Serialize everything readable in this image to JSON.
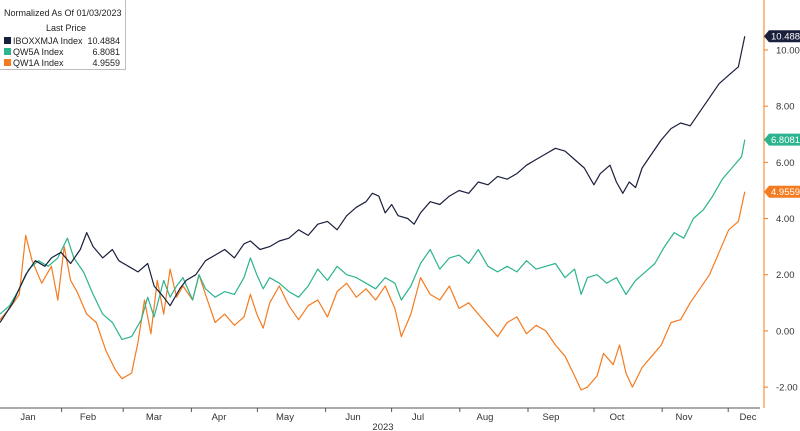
{
  "chart_data": {
    "type": "line",
    "legend_title": "Normalized As Of 01/03/2023",
    "legend_subtitle": "Last Price",
    "xlabel": "2023",
    "x_ticks": [
      "Jan",
      "Feb",
      "Mar",
      "Apr",
      "May",
      "Jun",
      "Jul",
      "Aug",
      "Sep",
      "Oct",
      "Nov",
      "Dec"
    ],
    "ylim": [
      -2.6,
      11.6
    ],
    "y_ticks": [
      "10.00",
      "8.00",
      "6.00",
      "4.00",
      "2.00",
      "0.00",
      "-2.00"
    ],
    "grid": false,
    "legend_position": "top-left",
    "series": [
      {
        "name": "IBOXXMJA Index",
        "value_label": "10.4884",
        "last": 10.4884,
        "color": "#1a1f3c",
        "points": [
          [
            0,
            0.3
          ],
          [
            4,
            1.0
          ],
          [
            8,
            2.0
          ],
          [
            11,
            2.5
          ],
          [
            14,
            2.3
          ],
          [
            16,
            2.6
          ],
          [
            19,
            2.8
          ],
          [
            22,
            2.4
          ],
          [
            25,
            2.9
          ],
          [
            27,
            3.5
          ],
          [
            29,
            3.0
          ],
          [
            32,
            2.6
          ],
          [
            35,
            2.9
          ],
          [
            37,
            2.5
          ],
          [
            40,
            2.3
          ],
          [
            43,
            2.1
          ],
          [
            46,
            2.4
          ],
          [
            48,
            1.6
          ],
          [
            51,
            1.2
          ],
          [
            53,
            0.9
          ],
          [
            56,
            1.5
          ],
          [
            58,
            1.8
          ],
          [
            61,
            2.0
          ],
          [
            64,
            2.5
          ],
          [
            67,
            2.7
          ],
          [
            70,
            2.9
          ],
          [
            73,
            2.6
          ],
          [
            76,
            3.1
          ],
          [
            78,
            3.2
          ],
          [
            81,
            2.9
          ],
          [
            84,
            3.0
          ],
          [
            87,
            3.2
          ],
          [
            90,
            3.3
          ],
          [
            93,
            3.6
          ],
          [
            96,
            3.4
          ],
          [
            99,
            3.8
          ],
          [
            102,
            3.9
          ],
          [
            105,
            3.6
          ],
          [
            108,
            4.1
          ],
          [
            111,
            4.4
          ],
          [
            114,
            4.6
          ],
          [
            116,
            4.9
          ],
          [
            118,
            4.8
          ],
          [
            120,
            4.2
          ],
          [
            122,
            4.5
          ],
          [
            124,
            4.1
          ],
          [
            127,
            4.0
          ],
          [
            129,
            3.8
          ],
          [
            131,
            4.2
          ],
          [
            134,
            4.6
          ],
          [
            137,
            4.5
          ],
          [
            140,
            4.8
          ],
          [
            143,
            5.0
          ],
          [
            146,
            4.9
          ],
          [
            149,
            5.3
          ],
          [
            152,
            5.2
          ],
          [
            155,
            5.5
          ],
          [
            158,
            5.4
          ],
          [
            161,
            5.6
          ],
          [
            164,
            5.9
          ],
          [
            167,
            6.1
          ],
          [
            170,
            6.3
          ],
          [
            173,
            6.5
          ],
          [
            176,
            6.4
          ],
          [
            179,
            6.1
          ],
          [
            182,
            5.8
          ],
          [
            185,
            5.2
          ],
          [
            187,
            5.6
          ],
          [
            190,
            5.9
          ],
          [
            192,
            5.3
          ],
          [
            194,
            4.9
          ],
          [
            196,
            5.3
          ],
          [
            198,
            5.1
          ],
          [
            200,
            5.8
          ],
          [
            203,
            6.3
          ],
          [
            206,
            6.8
          ],
          [
            209,
            7.2
          ],
          [
            212,
            7.4
          ],
          [
            215,
            7.3
          ],
          [
            218,
            7.8
          ],
          [
            221,
            8.3
          ],
          [
            224,
            8.8
          ],
          [
            227,
            9.1
          ],
          [
            230,
            9.4
          ],
          [
            232,
            10.4884
          ]
        ]
      },
      {
        "name": "QW5A Index",
        "value_label": "6.8081",
        "last": 6.8081,
        "color": "#2cb38f",
        "points": [
          [
            0,
            0.6
          ],
          [
            3,
            0.9
          ],
          [
            6,
            1.5
          ],
          [
            9,
            2.2
          ],
          [
            12,
            2.5
          ],
          [
            15,
            2.3
          ],
          [
            18,
            2.6
          ],
          [
            21,
            3.3
          ],
          [
            23,
            2.6
          ],
          [
            26,
            2.1
          ],
          [
            29,
            1.3
          ],
          [
            32,
            0.6
          ],
          [
            35,
            0.3
          ],
          [
            38,
            -0.3
          ],
          [
            41,
            -0.2
          ],
          [
            44,
            0.4
          ],
          [
            46,
            1.2
          ],
          [
            48,
            0.5
          ],
          [
            51,
            1.8
          ],
          [
            53,
            1.2
          ],
          [
            55,
            1.6
          ],
          [
            57,
            1.9
          ],
          [
            60,
            1.1
          ],
          [
            62,
            2.0
          ],
          [
            64,
            1.5
          ],
          [
            67,
            1.2
          ],
          [
            70,
            1.4
          ],
          [
            73,
            1.3
          ],
          [
            76,
            1.9
          ],
          [
            78,
            2.6
          ],
          [
            80,
            2.0
          ],
          [
            82,
            1.5
          ],
          [
            84,
            1.9
          ],
          [
            87,
            1.7
          ],
          [
            90,
            1.4
          ],
          [
            93,
            1.2
          ],
          [
            96,
            1.6
          ],
          [
            99,
            2.2
          ],
          [
            102,
            1.8
          ],
          [
            105,
            2.3
          ],
          [
            108,
            2.0
          ],
          [
            111,
            1.9
          ],
          [
            114,
            1.7
          ],
          [
            117,
            1.5
          ],
          [
            120,
            1.9
          ],
          [
            123,
            1.7
          ],
          [
            125,
            1.1
          ],
          [
            128,
            1.6
          ],
          [
            131,
            2.4
          ],
          [
            134,
            2.9
          ],
          [
            137,
            2.2
          ],
          [
            140,
            2.6
          ],
          [
            143,
            2.7
          ],
          [
            146,
            2.4
          ],
          [
            149,
            2.9
          ],
          [
            152,
            2.3
          ],
          [
            155,
            2.1
          ],
          [
            158,
            2.3
          ],
          [
            161,
            2.1
          ],
          [
            164,
            2.5
          ],
          [
            167,
            2.2
          ],
          [
            170,
            2.3
          ],
          [
            173,
            2.4
          ],
          [
            176,
            1.9
          ],
          [
            179,
            2.2
          ],
          [
            181,
            1.3
          ],
          [
            183,
            1.9
          ],
          [
            186,
            2.0
          ],
          [
            189,
            1.7
          ],
          [
            192,
            1.9
          ],
          [
            195,
            1.3
          ],
          [
            198,
            1.8
          ],
          [
            201,
            2.1
          ],
          [
            204,
            2.4
          ],
          [
            207,
            3.0
          ],
          [
            210,
            3.5
          ],
          [
            213,
            3.3
          ],
          [
            216,
            4.0
          ],
          [
            219,
            4.3
          ],
          [
            222,
            4.8
          ],
          [
            225,
            5.4
          ],
          [
            228,
            5.8
          ],
          [
            231,
            6.2
          ],
          [
            232,
            6.8081
          ]
        ]
      },
      {
        "name": "QW1A Index",
        "value_label": "4.9559",
        "last": 4.9559,
        "color": "#f47b20",
        "points": [
          [
            0,
            0.4
          ],
          [
            3,
            0.8
          ],
          [
            6,
            1.3
          ],
          [
            8,
            3.4
          ],
          [
            10,
            2.5
          ],
          [
            13,
            1.7
          ],
          [
            16,
            2.3
          ],
          [
            18,
            1.1
          ],
          [
            20,
            3.0
          ],
          [
            22,
            1.8
          ],
          [
            24,
            1.4
          ],
          [
            27,
            0.6
          ],
          [
            30,
            0.3
          ],
          [
            33,
            -0.7
          ],
          [
            36,
            -1.4
          ],
          [
            38,
            -1.7
          ],
          [
            41,
            -1.5
          ],
          [
            43,
            -0.4
          ],
          [
            45,
            1.1
          ],
          [
            47,
            -0.1
          ],
          [
            49,
            1.8
          ],
          [
            51,
            0.6
          ],
          [
            53,
            2.2
          ],
          [
            55,
            1.2
          ],
          [
            57,
            1.6
          ],
          [
            60,
            1.1
          ],
          [
            62,
            2.0
          ],
          [
            64,
            1.3
          ],
          [
            67,
            0.3
          ],
          [
            70,
            0.6
          ],
          [
            73,
            0.2
          ],
          [
            76,
            0.5
          ],
          [
            78,
            1.3
          ],
          [
            80,
            0.6
          ],
          [
            82,
            0.1
          ],
          [
            84,
            1.0
          ],
          [
            87,
            1.6
          ],
          [
            90,
            0.9
          ],
          [
            93,
            0.4
          ],
          [
            96,
            0.9
          ],
          [
            99,
            1.1
          ],
          [
            102,
            0.5
          ],
          [
            105,
            1.4
          ],
          [
            108,
            1.7
          ],
          [
            111,
            1.2
          ],
          [
            114,
            1.5
          ],
          [
            117,
            1.1
          ],
          [
            120,
            1.6
          ],
          [
            123,
            0.8
          ],
          [
            125,
            -0.2
          ],
          [
            128,
            0.6
          ],
          [
            131,
            1.9
          ],
          [
            134,
            1.3
          ],
          [
            137,
            1.1
          ],
          [
            140,
            1.6
          ],
          [
            143,
            0.8
          ],
          [
            146,
            1.0
          ],
          [
            149,
            0.6
          ],
          [
            152,
            0.2
          ],
          [
            155,
            -0.2
          ],
          [
            158,
            0.3
          ],
          [
            161,
            0.5
          ],
          [
            164,
            -0.1
          ],
          [
            167,
            0.2
          ],
          [
            170,
            0.0
          ],
          [
            173,
            -0.5
          ],
          [
            176,
            -0.9
          ],
          [
            179,
            -1.6
          ],
          [
            181,
            -2.1
          ],
          [
            183,
            -2.0
          ],
          [
            186,
            -1.6
          ],
          [
            188,
            -0.8
          ],
          [
            191,
            -1.2
          ],
          [
            193,
            -0.5
          ],
          [
            195,
            -1.5
          ],
          [
            197,
            -2.0
          ],
          [
            200,
            -1.3
          ],
          [
            203,
            -0.9
          ],
          [
            206,
            -0.5
          ],
          [
            209,
            0.3
          ],
          [
            212,
            0.4
          ],
          [
            215,
            1.0
          ],
          [
            218,
            1.5
          ],
          [
            221,
            2.0
          ],
          [
            224,
            2.8
          ],
          [
            227,
            3.6
          ],
          [
            230,
            3.9
          ],
          [
            232,
            4.9559
          ]
        ]
      }
    ]
  }
}
